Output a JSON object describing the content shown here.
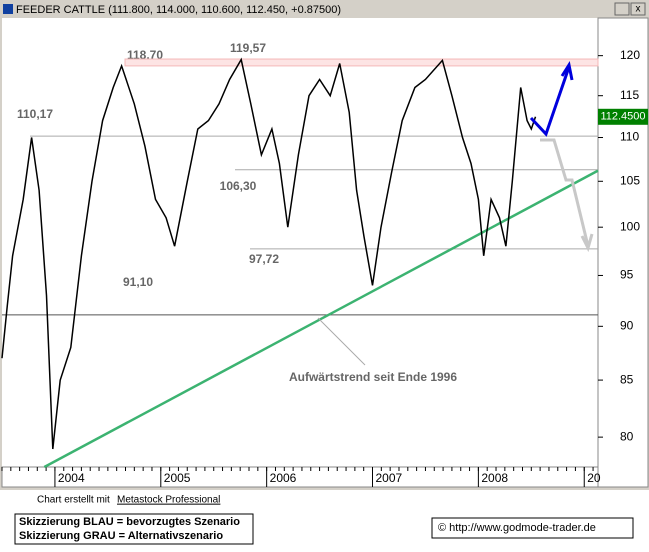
{
  "chart_data": {
    "type": "line",
    "title": "FEEDER CATTLE (111.800, 114.000, 110.600, 112.450, +0.87500)",
    "x": [
      2003.5,
      2003.55,
      2003.6,
      2003.7,
      2003.78,
      2003.85,
      2003.92,
      2003.98,
      2004.05,
      2004.15,
      2004.25,
      2004.35,
      2004.45,
      2004.55,
      2004.63,
      2004.75,
      2004.85,
      2004.95,
      2005.05,
      2005.13,
      2005.25,
      2005.35,
      2005.45,
      2005.55,
      2005.65,
      2005.76,
      2005.85,
      2005.95,
      2006.05,
      2006.12,
      2006.2,
      2006.3,
      2006.4,
      2006.5,
      2006.6,
      2006.69,
      2006.78,
      2006.85,
      2006.92,
      2007.0,
      2007.08,
      2007.18,
      2007.28,
      2007.4,
      2007.5,
      2007.66,
      2007.75,
      2007.85,
      2007.93,
      2008.0,
      2008.05,
      2008.12,
      2008.2,
      2008.26,
      2008.32,
      2008.4,
      2008.46,
      2008.5,
      2008.54
    ],
    "series": [
      {
        "name": "FEEDER CATTLE",
        "color": "#000000",
        "values": [
          87,
          92,
          97,
          103,
          110,
          104,
          93,
          79,
          85,
          88,
          97,
          105,
          112,
          116,
          118.7,
          114,
          109,
          103,
          101,
          98,
          105,
          111,
          112,
          114,
          117,
          119.5,
          114,
          108,
          111,
          107,
          100,
          108,
          115,
          117,
          115,
          119,
          113,
          104,
          99,
          94,
          100,
          106,
          112,
          116,
          117,
          119.4,
          115,
          110,
          107,
          103,
          97,
          103,
          101,
          98,
          105,
          116,
          112,
          111,
          112.45
        ]
      }
    ],
    "last_label": "112.4500",
    "xlim": [
      2003.5,
      2009.13
    ],
    "xticks": [
      2004,
      2005,
      2006,
      2007,
      2008,
      {
        "value": 2009,
        "label": "20"
      }
    ],
    "ylim": [
      77.5,
      124.9
    ],
    "yticks": [
      80,
      85,
      90,
      95,
      100,
      105,
      110,
      115,
      120
    ],
    "log_scale": true,
    "levels": [
      {
        "value": 118.7,
        "label": "118,70"
      },
      {
        "value": 119.57,
        "label": "119,57"
      },
      {
        "value": 110.17,
        "label": "110,17"
      },
      {
        "value": 106.3,
        "label": "106,30"
      },
      {
        "value": 97.72,
        "label": "97,72"
      },
      {
        "value": 91.1,
        "label": "91,10"
      }
    ],
    "trendline": {
      "label": "Aufwärtstrend seit Ende 1996",
      "color": "#3cb371",
      "x": [
        2003.9,
        2009.13
      ],
      "values": [
        77.5,
        106.2
      ]
    }
  },
  "footer": {
    "credit_prefix": "Chart erstellt mit",
    "credit_link": "Metastock Professional",
    "legend_blue": "Skizzierung BLAU = bevorzugtes Szenario",
    "legend_grey": "Skizzierung GRAU = Alternativszenario",
    "copyright": "© http://www.godmode-trader.de"
  }
}
